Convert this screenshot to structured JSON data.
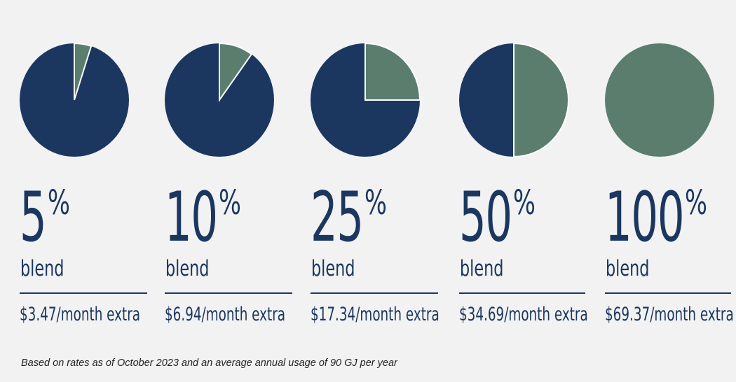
{
  "chart_data": {
    "type": "pie",
    "colors": {
      "primary": "#1b3760",
      "blend": "#5a7d6e",
      "background": "#f2f2f2"
    },
    "charts": [
      {
        "value": 5,
        "percent_label": "5",
        "percent_sign": "%",
        "blend_label": "blend",
        "price_label": "$3.47/month extra"
      },
      {
        "value": 10,
        "percent_label": "10",
        "percent_sign": "%",
        "blend_label": "blend",
        "price_label": "$6.94/month extra"
      },
      {
        "value": 25,
        "percent_label": "25",
        "percent_sign": "%",
        "blend_label": "blend",
        "price_label": "$17.34/month extra"
      },
      {
        "value": 50,
        "percent_label": "50",
        "percent_sign": "%",
        "blend_label": "blend",
        "price_label": "$34.69/month extra"
      },
      {
        "value": 100,
        "percent_label": "100",
        "percent_sign": "%",
        "blend_label": "blend",
        "price_label": "$69.37/month extra"
      }
    ]
  },
  "footnote": "Based on rates as of October 2023 and an average annual usage of 90 GJ per year"
}
